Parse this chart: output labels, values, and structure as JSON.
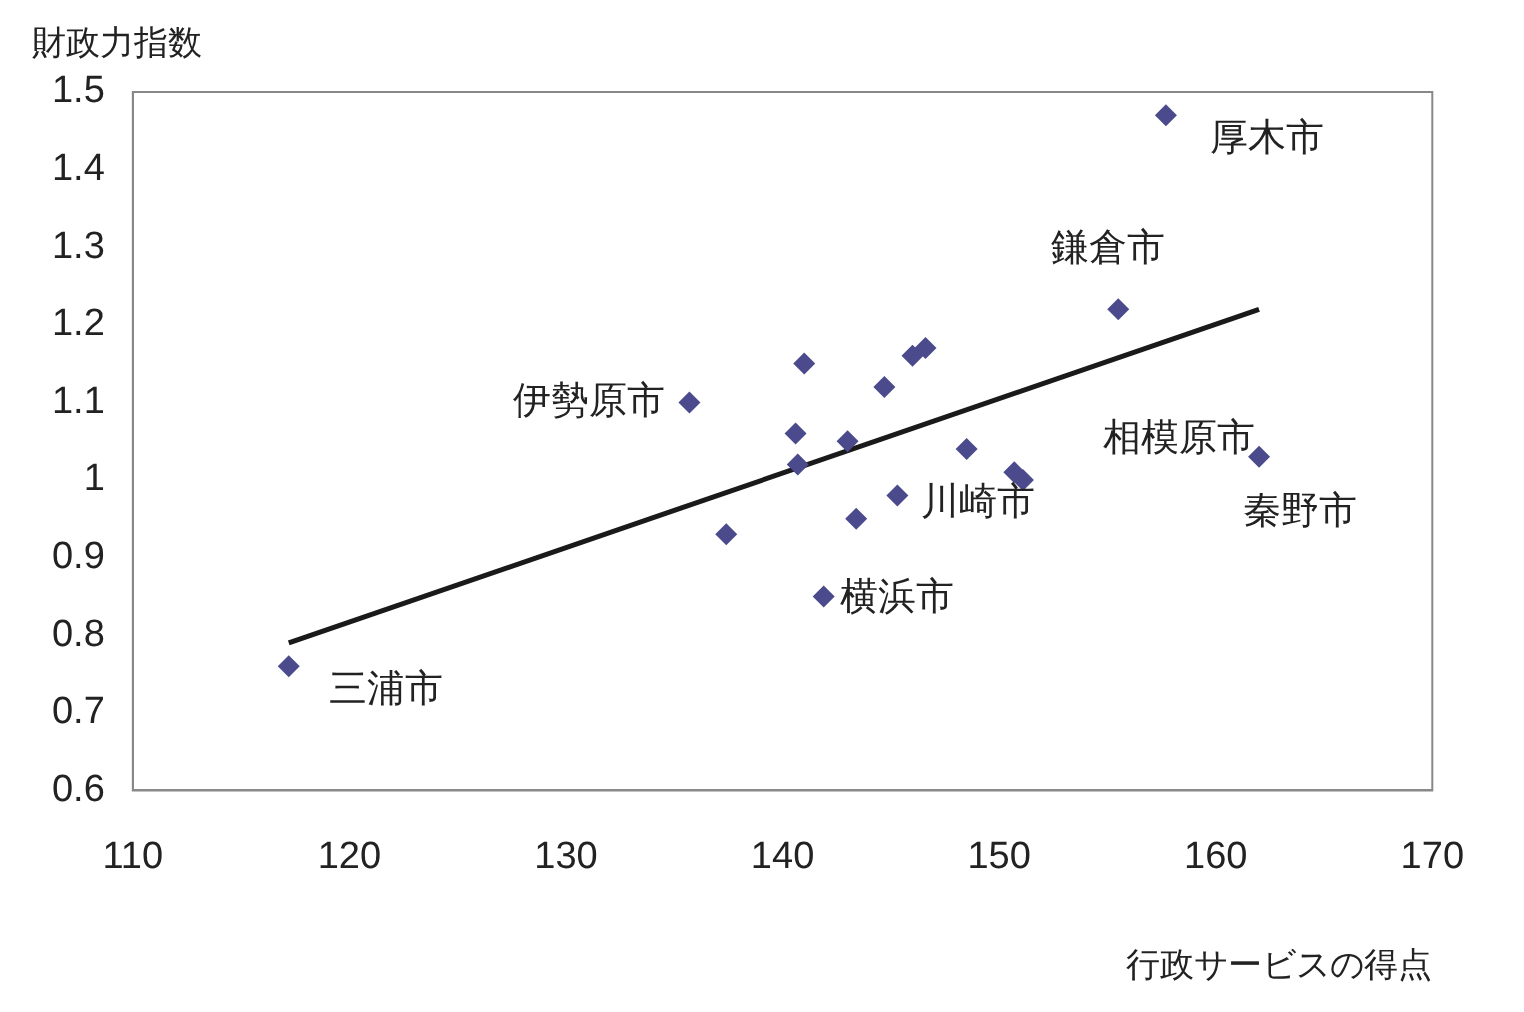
{
  "chart_data": {
    "type": "scatter",
    "ylabel": "財政力指数",
    "xlabel": "行政サービスの得点",
    "xlim": [
      110,
      170
    ],
    "xticks": [
      110,
      120,
      130,
      140,
      150,
      160,
      170
    ],
    "ylim": [
      0.6,
      1.5
    ],
    "yticks": [
      0.6,
      0.7,
      0.8,
      0.9,
      1,
      1.1,
      1.2,
      1.3,
      1.4,
      1.5
    ],
    "grid": false,
    "legend": false,
    "marker": "diamond",
    "series": [
      {
        "color": "#4a4a8c",
        "x": [
          117.2,
          135.7,
          141.0,
          140.6,
          140.7,
          143.0,
          137.4,
          141.9,
          157.7,
          155.5,
          144.7,
          146.0,
          146.6,
          143.4,
          145.3,
          148.5,
          150.7,
          151.1,
          162.0
        ],
        "values": [
          0.76,
          1.1,
          1.15,
          1.06,
          1.02,
          1.05,
          0.93,
          0.85,
          1.47,
          1.22,
          1.12,
          1.16,
          1.17,
          0.95,
          0.98,
          1.04,
          1.01,
          1.0,
          1.03
        ]
      },
      {
        "type": "line",
        "color": "#1a1a1a",
        "marker": "none",
        "x": [
          117.2,
          162.0
        ],
        "values": [
          0.79,
          1.22
        ]
      }
    ],
    "annotations": [
      {
        "text": "厚木市",
        "x": 157.7,
        "y": 1.47
      },
      {
        "text": "鎌倉市",
        "x": 155.5,
        "y": 1.22
      },
      {
        "text": "伊勢原市",
        "x": 135.7,
        "y": 1.1
      },
      {
        "text": "相模原市",
        "x": 151.1,
        "y": 1.0
      },
      {
        "text": "川崎市",
        "x": 145.3,
        "y": 0.98
      },
      {
        "text": "横浜市",
        "x": 143.4,
        "y": 0.95
      },
      {
        "text": "秦野市",
        "x": 162.0,
        "y": 1.03
      },
      {
        "text": "三浦市",
        "x": 117.2,
        "y": 0.76
      }
    ]
  }
}
